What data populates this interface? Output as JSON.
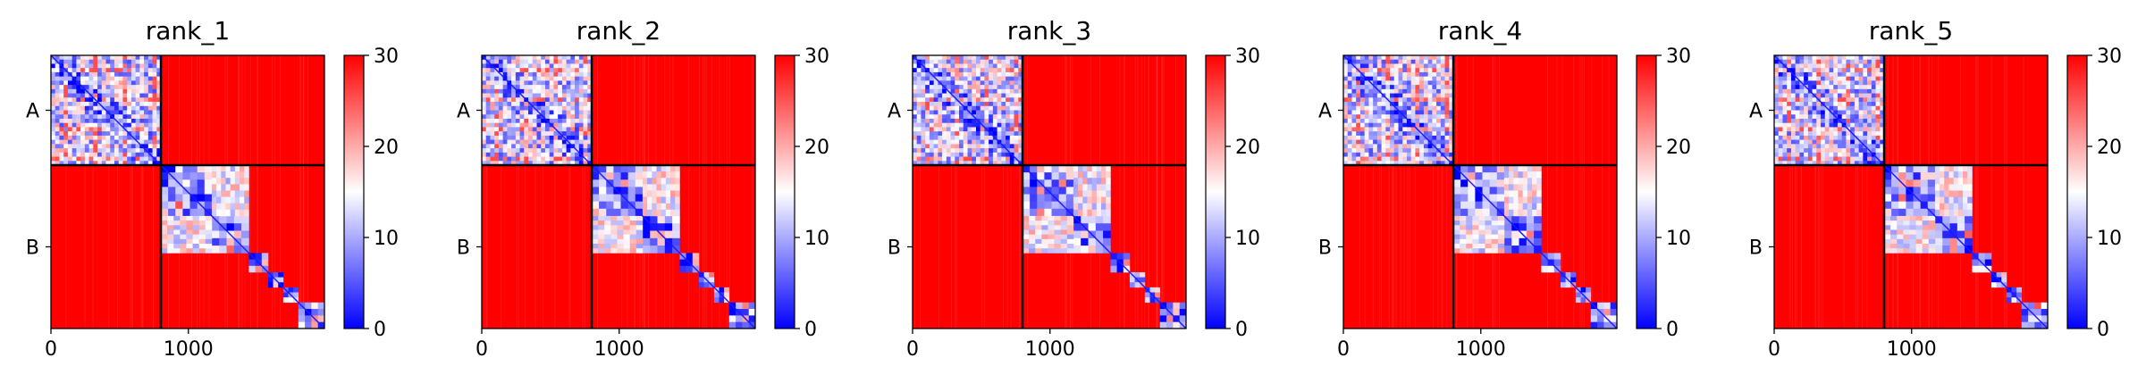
{
  "chart_data": [
    {
      "type": "heatmap",
      "title": "rank_1",
      "x_ticks": [
        "0",
        "1000"
      ],
      "y_ticks": [
        "A",
        "B"
      ],
      "colorbar": {
        "ticks": [
          "0",
          "10",
          "20",
          "30"
        ],
        "range": [
          0,
          30
        ],
        "colormap": "bwr"
      },
      "chain_boundary": 800,
      "total_length": 1990
    },
    {
      "type": "heatmap",
      "title": "rank_2",
      "x_ticks": [
        "0",
        "1000"
      ],
      "y_ticks": [
        "A",
        "B"
      ],
      "colorbar": {
        "ticks": [
          "0",
          "10",
          "20",
          "30"
        ],
        "range": [
          0,
          30
        ],
        "colormap": "bwr"
      },
      "chain_boundary": 800,
      "total_length": 1990
    },
    {
      "type": "heatmap",
      "title": "rank_3",
      "x_ticks": [
        "0",
        "1000"
      ],
      "y_ticks": [
        "A",
        "B"
      ],
      "colorbar": {
        "ticks": [
          "0",
          "10",
          "20",
          "30"
        ],
        "range": [
          0,
          30
        ],
        "colormap": "bwr"
      },
      "chain_boundary": 800,
      "total_length": 1990
    },
    {
      "type": "heatmap",
      "title": "rank_4",
      "x_ticks": [
        "0",
        "1000"
      ],
      "y_ticks": [
        "A",
        "B"
      ],
      "colorbar": {
        "ticks": [
          "0",
          "10",
          "20",
          "30"
        ],
        "range": [
          0,
          30
        ],
        "colormap": "bwr"
      },
      "chain_boundary": 800,
      "total_length": 1990
    },
    {
      "type": "heatmap",
      "title": "rank_5",
      "x_ticks": [
        "0",
        "1000"
      ],
      "y_ticks": [
        "A",
        "B"
      ],
      "colorbar": {
        "ticks": [
          "0",
          "10",
          "20",
          "30"
        ],
        "range": [
          0,
          30
        ],
        "colormap": "bwr"
      },
      "chain_boundary": 800,
      "total_length": 1990
    }
  ],
  "colors": {
    "low": "#0000ff",
    "mid": "#ffffff",
    "high": "#ff0000"
  }
}
